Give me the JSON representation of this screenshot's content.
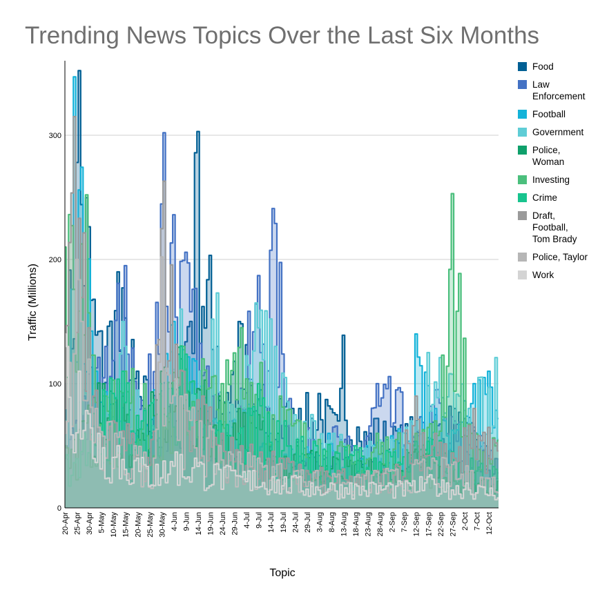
{
  "chart_data": {
    "type": "area",
    "title": "Trending News Topics Over the Last Six Months",
    "xlabel": "Topic",
    "ylabel": "Traffic (Millions)",
    "ylim": [
      0,
      360
    ],
    "yticks": [
      0,
      100,
      200,
      300
    ],
    "grid": true,
    "legend_position": "right",
    "step": true,
    "x_start": "2023-04-20",
    "x_days": 180,
    "x_tick_labels": [
      "20-Apr",
      "25-Apr",
      "30-Apr",
      "5-May",
      "10-May",
      "15-May",
      "20-May",
      "25-May",
      "30-May",
      "4-Jun",
      "9-Jun",
      "14-Jun",
      "19-Jun",
      "24-Jun",
      "29-Jun",
      "4-Jul",
      "9-Jul",
      "14-Jul",
      "19-Jul",
      "24-Jul",
      "29-Jul",
      "3-Aug",
      "8-Aug",
      "13-Aug",
      "18-Aug",
      "23-Aug",
      "28-Aug",
      "2-Sep",
      "7-Sep",
      "12-Sep",
      "17-Sep",
      "22-Sep",
      "27-Sep",
      "2-Oct",
      "7-Oct",
      "12-Oct"
    ],
    "series": [
      {
        "name": "Food",
        "color": "#005f94",
        "x": [
          "2023-04-20",
          "2023-04-26",
          "2023-05-04",
          "2023-05-12",
          "2023-05-20",
          "2023-06-05",
          "2023-06-14",
          "2023-06-22",
          "2023-07-01",
          "2023-07-10",
          "2023-07-18",
          "2023-07-26",
          "2023-08-03",
          "2023-08-11",
          "2023-08-13",
          "2023-08-19",
          "2023-08-27",
          "2023-09-04",
          "2023-09-12",
          "2023-09-20",
          "2023-09-28",
          "2023-10-06",
          "2023-10-17"
        ],
        "y": [
          100,
          352,
          142,
          190,
          110,
          70,
          303,
          130,
          150,
          95,
          88,
          80,
          92,
          70,
          139,
          65,
          72,
          62,
          70,
          75,
          80,
          62,
          34
        ]
      },
      {
        "name": "Law\nEnforcement",
        "color": "#4472c4",
        "x": [
          "2023-04-20",
          "2023-04-28",
          "2023-05-07",
          "2023-05-15",
          "2023-05-23",
          "2023-05-31",
          "2023-06-04",
          "2023-06-12",
          "2023-06-20",
          "2023-06-28",
          "2023-07-09",
          "2023-07-16",
          "2023-07-24",
          "2023-08-01",
          "2023-08-09",
          "2023-08-17",
          "2023-08-27",
          "2023-09-04",
          "2023-09-12",
          "2023-09-20",
          "2023-09-28",
          "2023-10-06",
          "2023-10-17"
        ],
        "y": [
          60,
          90,
          130,
          195,
          80,
          302,
          236,
          176,
          90,
          70,
          187,
          229,
          70,
          55,
          65,
          50,
          100,
          95,
          60,
          95,
          70,
          65,
          35
        ]
      },
      {
        "name": "Football",
        "color": "#14b3d9",
        "x": [
          "2023-04-20",
          "2023-04-24",
          "2023-05-03",
          "2023-05-11",
          "2023-05-19",
          "2023-05-27",
          "2023-06-04",
          "2023-06-12",
          "2023-06-20",
          "2023-06-28",
          "2023-07-06",
          "2023-07-14",
          "2023-07-22",
          "2023-07-30",
          "2023-08-07",
          "2023-08-15",
          "2023-08-23",
          "2023-08-31",
          "2023-09-08",
          "2023-09-12",
          "2023-09-20",
          "2023-09-28",
          "2023-10-06",
          "2023-10-12",
          "2023-10-17"
        ],
        "y": [
          45,
          347,
          110,
          85,
          60,
          95,
          150,
          120,
          70,
          65,
          80,
          60,
          50,
          45,
          60,
          40,
          50,
          55,
          60,
          140,
          80,
          60,
          100,
          110,
          65
        ]
      },
      {
        "name": "Government",
        "color": "#5fcdd6",
        "x": [
          "2023-04-20",
          "2023-04-28",
          "2023-05-06",
          "2023-05-14",
          "2023-05-22",
          "2023-05-30",
          "2023-06-07",
          "2023-06-15",
          "2023-06-22",
          "2023-06-30",
          "2023-07-08",
          "2023-07-16",
          "2023-07-24",
          "2023-08-01",
          "2023-08-09",
          "2023-08-17",
          "2023-08-25",
          "2023-09-02",
          "2023-09-10",
          "2023-09-17",
          "2023-09-22",
          "2023-09-30",
          "2023-10-08",
          "2023-10-15"
        ],
        "y": [
          70,
          95,
          80,
          150,
          70,
          90,
          160,
          110,
          173,
          80,
          165,
          130,
          75,
          70,
          60,
          45,
          50,
          55,
          70,
          125,
          121,
          90,
          105,
          121
        ]
      },
      {
        "name": "Police,\nWoman",
        "color": "#0fa06b",
        "x": [
          "2023-04-20",
          "2023-04-28",
          "2023-05-06",
          "2023-05-14",
          "2023-05-22",
          "2023-05-30",
          "2023-06-07",
          "2023-06-15",
          "2023-06-23",
          "2023-07-01",
          "2023-07-09",
          "2023-07-17",
          "2023-07-25",
          "2023-08-02",
          "2023-08-10",
          "2023-08-18",
          "2023-08-26",
          "2023-09-03",
          "2023-09-11",
          "2023-09-19",
          "2023-09-27",
          "2023-10-05",
          "2023-10-17"
        ],
        "y": [
          50,
          70,
          100,
          90,
          60,
          110,
          120,
          95,
          90,
          80,
          75,
          60,
          50,
          45,
          40,
          35,
          40,
          35,
          45,
          40,
          35,
          30,
          25
        ]
      },
      {
        "name": "Investing",
        "color": "#4bbf7d",
        "x": [
          "2023-04-20",
          "2023-04-29",
          "2023-05-07",
          "2023-05-15",
          "2023-05-23",
          "2023-05-31",
          "2023-06-08",
          "2023-06-16",
          "2023-06-24",
          "2023-07-02",
          "2023-07-10",
          "2023-07-18",
          "2023-07-26",
          "2023-08-03",
          "2023-08-11",
          "2023-08-19",
          "2023-08-27",
          "2023-09-04",
          "2023-09-12",
          "2023-09-20",
          "2023-09-27",
          "2023-10-05",
          "2023-10-17"
        ],
        "y": [
          210,
          252,
          90,
          110,
          100,
          80,
          130,
          120,
          100,
          145,
          117,
          90,
          70,
          55,
          50,
          45,
          60,
          55,
          60,
          70,
          253,
          60,
          50
        ]
      },
      {
        "name": "Crime",
        "color": "#18c48e",
        "x": [
          "2023-04-20",
          "2023-04-28",
          "2023-05-06",
          "2023-05-14",
          "2023-05-22",
          "2023-05-30",
          "2023-06-07",
          "2023-06-15",
          "2023-06-23",
          "2023-07-01",
          "2023-07-09",
          "2023-07-17",
          "2023-07-25",
          "2023-08-02",
          "2023-08-10",
          "2023-08-18",
          "2023-08-26",
          "2023-09-03",
          "2023-09-11",
          "2023-09-19",
          "2023-09-27",
          "2023-10-05",
          "2023-10-17"
        ],
        "y": [
          40,
          60,
          95,
          110,
          70,
          100,
          130,
          80,
          70,
          60,
          100,
          70,
          55,
          50,
          45,
          50,
          40,
          45,
          50,
          55,
          45,
          40,
          30
        ]
      },
      {
        "name": "Draft,\nFootball,\nTom Brady",
        "color": "#9a9a9a",
        "x": [
          "2023-04-20",
          "2023-04-24",
          "2023-05-02",
          "2023-05-10",
          "2023-05-18",
          "2023-05-26",
          "2023-05-31",
          "2023-06-08",
          "2023-06-16",
          "2023-06-24",
          "2023-07-02",
          "2023-07-10",
          "2023-07-18",
          "2023-07-26",
          "2023-08-03",
          "2023-08-11",
          "2023-08-19",
          "2023-08-27",
          "2023-09-04",
          "2023-09-12",
          "2023-09-20",
          "2023-09-28",
          "2023-10-06",
          "2023-10-17"
        ],
        "y": [
          80,
          315,
          90,
          70,
          60,
          55,
          263,
          110,
          90,
          60,
          50,
          45,
          40,
          35,
          30,
          30,
          25,
          30,
          35,
          90,
          60,
          40,
          80,
          50
        ]
      },
      {
        "name": "Police, Taylor",
        "color": "#b6b6b6",
        "x": [
          "2023-04-20",
          "2023-04-25",
          "2023-05-03",
          "2023-05-11",
          "2023-05-19",
          "2023-05-27",
          "2023-05-30",
          "2023-06-07",
          "2023-06-15",
          "2023-06-23",
          "2023-07-01",
          "2023-07-09",
          "2023-07-17",
          "2023-07-25",
          "2023-08-02",
          "2023-08-10",
          "2023-08-18",
          "2023-08-26",
          "2023-09-03",
          "2023-09-11",
          "2023-09-19",
          "2023-09-27",
          "2023-10-05",
          "2023-10-17"
        ],
        "y": [
          60,
          200,
          80,
          60,
          50,
          40,
          202,
          90,
          70,
          50,
          45,
          40,
          35,
          30,
          30,
          25,
          25,
          30,
          30,
          35,
          40,
          35,
          30,
          25
        ]
      },
      {
        "name": "Work",
        "color": "#d4d4d4",
        "x": [
          "2023-04-20",
          "2023-04-26",
          "2023-05-04",
          "2023-05-12",
          "2023-05-20",
          "2023-05-28",
          "2023-06-05",
          "2023-06-13",
          "2023-06-21",
          "2023-06-29",
          "2023-07-07",
          "2023-07-15",
          "2023-07-23",
          "2023-07-31",
          "2023-08-08",
          "2023-08-16",
          "2023-08-24",
          "2023-09-01",
          "2023-09-09",
          "2023-09-17",
          "2023-09-25",
          "2023-10-03",
          "2023-10-17"
        ],
        "y": [
          140,
          110,
          60,
          50,
          40,
          35,
          45,
          40,
          35,
          30,
          30,
          25,
          25,
          20,
          20,
          20,
          20,
          20,
          20,
          25,
          20,
          20,
          15
        ]
      }
    ]
  }
}
